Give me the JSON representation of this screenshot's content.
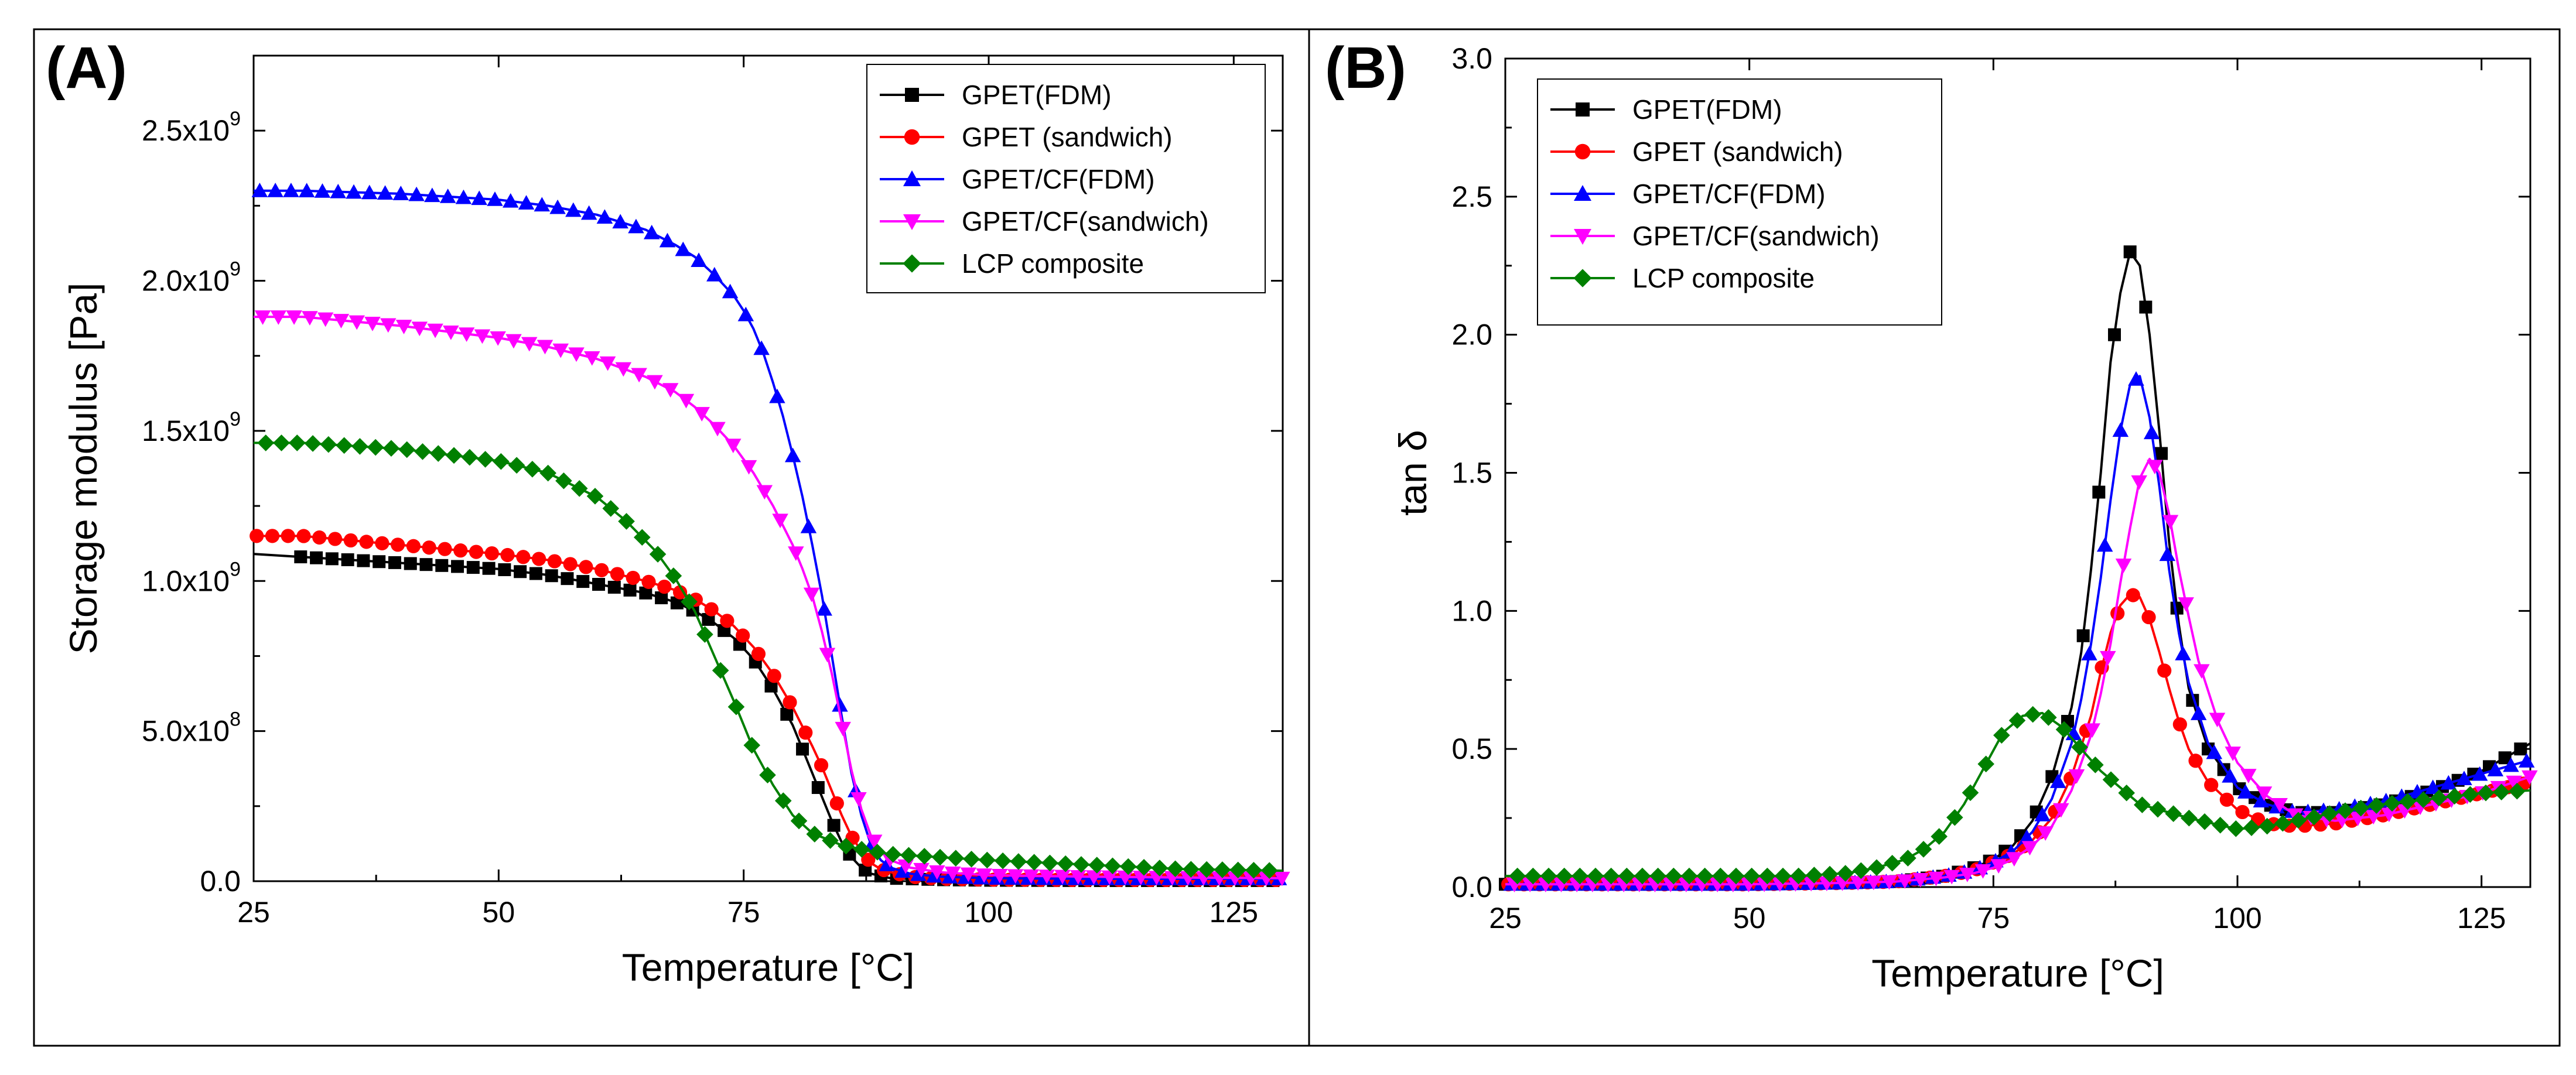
{
  "chart_data": [
    {
      "panel_label": "(A)",
      "type": "line",
      "xlabel": "Temperature [°C]",
      "ylabel": "Storage modulus [Pa]",
      "xlim": [
        25,
        130
      ],
      "ylim": [
        0,
        2750000000.0
      ],
      "x_ticks": [
        25,
        50,
        75,
        100,
        125
      ],
      "x_tick_labels": [
        "25",
        "50",
        "75",
        "100",
        "125"
      ],
      "y_ticks": [
        0,
        500000000.0,
        1000000000.0,
        1500000000.0,
        2000000000.0,
        2500000000.0
      ],
      "y_tick_labels": [
        {
          "mant": "0.0",
          "exp": ""
        },
        {
          "mant": "5.0x10",
          "exp": "8"
        },
        {
          "mant": "1.0x10",
          "exp": "9"
        },
        {
          "mant": "1.5x10",
          "exp": "9"
        },
        {
          "mant": "2.0x10",
          "exp": "9"
        },
        {
          "mant": "2.5x10",
          "exp": "9"
        }
      ],
      "grid": false,
      "legend_position": "top-right",
      "series": [
        {
          "name": "GPET(FDM)",
          "color": "#000000",
          "marker": "square",
          "x": [
            25,
            30,
            40,
            50,
            55,
            60,
            65,
            68,
            70,
            72,
            74,
            76,
            78,
            80,
            81,
            82,
            83,
            84,
            85,
            86,
            87,
            88,
            90,
            95,
            100,
            110,
            120,
            130
          ],
          "y": [
            1090000000.0,
            1080000000.0,
            1060000000.0,
            1040000000.0,
            1020000000.0,
            990000000.0,
            960000000.0,
            930000000.0,
            900000000.0,
            860000000.0,
            810000000.0,
            740000000.0,
            640000000.0,
            520000000.0,
            440000000.0,
            360000000.0,
            280000000.0,
            200000000.0,
            130000000.0,
            80000000.0,
            45000000.0,
            25000000.0,
            10000000.0,
            5000000.0,
            3000000.0,
            2000000.0,
            2000000.0,
            2000000.0
          ]
        },
        {
          "name": "GPET (sandwich)",
          "color": "#ff0000",
          "marker": "circle",
          "x": [
            25,
            30,
            40,
            50,
            55,
            60,
            65,
            68,
            70,
            72,
            74,
            76,
            78,
            80,
            82,
            83,
            84,
            85,
            86,
            87,
            88,
            89,
            90,
            92,
            95,
            100,
            110,
            120,
            130
          ],
          "y": [
            1150000000.0,
            1150000000.0,
            1120000000.0,
            1090000000.0,
            1070000000.0,
            1040000000.0,
            1000000000.0,
            970000000.0,
            940000000.0,
            900000000.0,
            850000000.0,
            780000000.0,
            690000000.0,
            580000000.0,
            450000000.0,
            380000000.0,
            300000000.0,
            220000000.0,
            150000000.0,
            100000000.0,
            60000000.0,
            40000000.0,
            30000000.0,
            15000000.0,
            8000000.0,
            5000000.0,
            4000000.0,
            4000000.0,
            4000000.0
          ]
        },
        {
          "name": "GPET/CF(FDM)",
          "color": "#0000ff",
          "marker": "triangle-up",
          "x": [
            25,
            30,
            40,
            50,
            55,
            60,
            65,
            68,
            70,
            72,
            74,
            75,
            76,
            77,
            78,
            79,
            80,
            81,
            82,
            83,
            84,
            85,
            86,
            87,
            88,
            89,
            90,
            92,
            95,
            100,
            110,
            120,
            130
          ],
          "y": [
            2300000000.0,
            2300000000.0,
            2290000000.0,
            2270000000.0,
            2250000000.0,
            2220000000.0,
            2170000000.0,
            2120000000.0,
            2080000000.0,
            2020000000.0,
            1950000000.0,
            1900000000.0,
            1840000000.0,
            1760000000.0,
            1660000000.0,
            1550000000.0,
            1420000000.0,
            1280000000.0,
            1120000000.0,
            950000000.0,
            750000000.0,
            550000000.0,
            360000000.0,
            220000000.0,
            120000000.0,
            70000000.0,
            45000000.0,
            25000000.0,
            15000000.0,
            10000000.0,
            8000000.0,
            8000000.0,
            8000000.0
          ]
        },
        {
          "name": "GPET/CF(sandwich)",
          "color": "#ff00ff",
          "marker": "triangle-down",
          "x": [
            25,
            30,
            40,
            50,
            55,
            60,
            65,
            68,
            70,
            72,
            74,
            76,
            78,
            80,
            81,
            82,
            83,
            84,
            85,
            86,
            87,
            88,
            89,
            90,
            92,
            95,
            100,
            110,
            120,
            130
          ],
          "y": [
            1880000000.0,
            1880000000.0,
            1850000000.0,
            1810000000.0,
            1780000000.0,
            1740000000.0,
            1680000000.0,
            1630000000.0,
            1580000000.0,
            1520000000.0,
            1450000000.0,
            1360000000.0,
            1250000000.0,
            1120000000.0,
            1040000000.0,
            950000000.0,
            830000000.0,
            690000000.0,
            530000000.0,
            370000000.0,
            240000000.0,
            150000000.0,
            100000000.0,
            70000000.0,
            45000000.0,
            30000000.0,
            20000000.0,
            15000000.0,
            12000000.0,
            10000000.0
          ]
        },
        {
          "name": "LCP composite",
          "color": "#008000",
          "marker": "diamond",
          "x": [
            25,
            30,
            40,
            50,
            55,
            60,
            63,
            66,
            68,
            70,
            72,
            74,
            75,
            76,
            78,
            80,
            82,
            85,
            88,
            90,
            95,
            100,
            110,
            120,
            130
          ],
          "y": [
            1460000000.0,
            1460000000.0,
            1440000000.0,
            1400000000.0,
            1360000000.0,
            1280000000.0,
            1200000000.0,
            1100000000.0,
            1010000000.0,
            900000000.0,
            750000000.0,
            600000000.0,
            520000000.0,
            440000000.0,
            320000000.0,
            220000000.0,
            160000000.0,
            120000000.0,
            100000000.0,
            90000000.0,
            80000000.0,
            70000000.0,
            55000000.0,
            40000000.0,
            35000000.0
          ]
        }
      ]
    },
    {
      "panel_label": "(B)",
      "type": "line",
      "xlabel": "Temperature [°C]",
      "ylabel": "tan δ",
      "xlim": [
        25,
        130
      ],
      "ylim": [
        0,
        3.0
      ],
      "x_ticks": [
        25,
        50,
        75,
        100,
        125
      ],
      "x_tick_labels": [
        "25",
        "50",
        "75",
        "100",
        "125"
      ],
      "y_ticks": [
        0,
        0.5,
        1.0,
        1.5,
        2.0,
        2.5,
        3.0
      ],
      "y_tick_labels": [
        "0.0",
        "0.5",
        "1.0",
        "1.5",
        "2.0",
        "2.5",
        "3.0"
      ],
      "grid": false,
      "legend_position": "top-left",
      "series": [
        {
          "name": "GPET(FDM)",
          "color": "#000000",
          "marker": "square",
          "x": [
            25,
            40,
            50,
            60,
            65,
            70,
            73,
            75,
            77,
            79,
            81,
            83,
            84,
            85,
            86,
            87,
            88,
            89,
            90,
            91,
            92,
            93,
            94,
            95,
            97,
            100,
            103,
            106,
            110,
            115,
            120,
            125,
            130
          ],
          "y": [
            0.01,
            0.01,
            0.01,
            0.015,
            0.02,
            0.04,
            0.07,
            0.1,
            0.15,
            0.24,
            0.4,
            0.65,
            0.85,
            1.15,
            1.5,
            1.9,
            2.15,
            2.3,
            2.25,
            2.0,
            1.65,
            1.25,
            0.95,
            0.72,
            0.5,
            0.36,
            0.3,
            0.27,
            0.27,
            0.3,
            0.35,
            0.42,
            0.52
          ]
        },
        {
          "name": "GPET (sandwich)",
          "color": "#ff0000",
          "marker": "circle",
          "x": [
            25,
            40,
            50,
            60,
            65,
            70,
            73,
            75,
            77,
            79,
            81,
            83,
            85,
            86,
            87,
            88,
            89,
            90,
            91,
            92,
            93,
            94,
            95,
            97,
            100,
            103,
            106,
            110,
            115,
            120,
            125,
            130
          ],
          "y": [
            0.01,
            0.01,
            0.01,
            0.015,
            0.02,
            0.04,
            0.06,
            0.09,
            0.12,
            0.17,
            0.25,
            0.4,
            0.62,
            0.78,
            0.92,
            1.02,
            1.06,
            1.05,
            0.97,
            0.85,
            0.72,
            0.6,
            0.5,
            0.38,
            0.28,
            0.23,
            0.22,
            0.23,
            0.26,
            0.3,
            0.34,
            0.38
          ]
        },
        {
          "name": "GPET/CF(FDM)",
          "color": "#0000ff",
          "marker": "triangle-up",
          "x": [
            25,
            40,
            50,
            60,
            65,
            70,
            73,
            75,
            77,
            79,
            81,
            83,
            84,
            85,
            86,
            87,
            88,
            89,
            90,
            91,
            92,
            93,
            94,
            95,
            97,
            100,
            103,
            106,
            110,
            115,
            120,
            125,
            130
          ],
          "y": [
            0.01,
            0.01,
            0.01,
            0.015,
            0.02,
            0.04,
            0.06,
            0.09,
            0.13,
            0.2,
            0.32,
            0.52,
            0.68,
            0.88,
            1.12,
            1.4,
            1.65,
            1.82,
            1.85,
            1.7,
            1.45,
            1.15,
            0.92,
            0.74,
            0.52,
            0.36,
            0.3,
            0.27,
            0.28,
            0.31,
            0.36,
            0.41,
            0.46
          ]
        },
        {
          "name": "GPET/CF(sandwich)",
          "color": "#ff00ff",
          "marker": "triangle-down",
          "x": [
            25,
            40,
            50,
            60,
            65,
            70,
            73,
            75,
            77,
            79,
            81,
            83,
            85,
            86,
            87,
            88,
            89,
            90,
            91,
            92,
            93,
            94,
            95,
            96,
            98,
            100,
            103,
            106,
            110,
            115,
            120,
            125,
            130
          ],
          "y": [
            0.01,
            0.01,
            0.01,
            0.015,
            0.02,
            0.035,
            0.05,
            0.07,
            0.1,
            0.15,
            0.22,
            0.35,
            0.55,
            0.7,
            0.88,
            1.1,
            1.3,
            1.48,
            1.55,
            1.5,
            1.35,
            1.15,
            0.98,
            0.82,
            0.6,
            0.45,
            0.33,
            0.26,
            0.24,
            0.26,
            0.3,
            0.34,
            0.4
          ]
        },
        {
          "name": "LCP composite",
          "color": "#008000",
          "marker": "diamond",
          "x": [
            25,
            40,
            50,
            55,
            60,
            63,
            66,
            68,
            70,
            72,
            74,
            76,
            78,
            80,
            82,
            84,
            86,
            88,
            90,
            95,
            100,
            103,
            106,
            110,
            115,
            120,
            125,
            130
          ],
          "y": [
            0.04,
            0.04,
            0.04,
            0.04,
            0.05,
            0.07,
            0.1,
            0.14,
            0.2,
            0.3,
            0.43,
            0.56,
            0.62,
            0.63,
            0.58,
            0.5,
            0.42,
            0.36,
            0.3,
            0.25,
            0.21,
            0.22,
            0.24,
            0.27,
            0.3,
            0.32,
            0.34,
            0.35
          ]
        }
      ]
    }
  ]
}
